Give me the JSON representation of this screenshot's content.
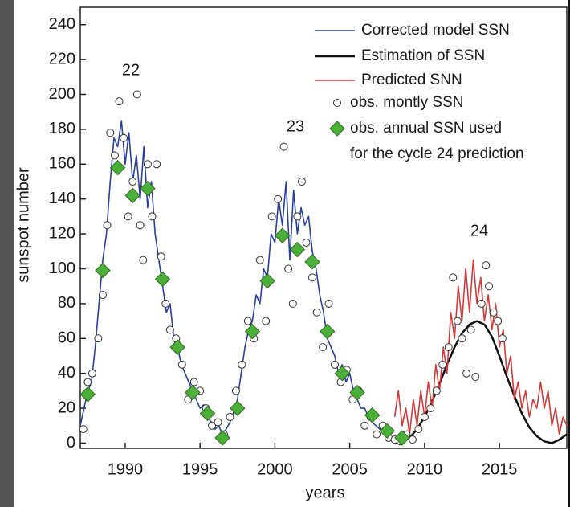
{
  "chart_data": {
    "type": "line",
    "xlabel": "years",
    "ylabel": "sunspot number",
    "xlim": [
      1987,
      2019.5
    ],
    "ylim": [
      -3,
      250
    ],
    "xticks": [
      1990,
      1995,
      2000,
      2005,
      2010,
      2015
    ],
    "yticks": [
      0,
      20,
      40,
      60,
      80,
      100,
      120,
      140,
      160,
      180,
      200,
      220,
      240
    ],
    "grid": false,
    "legend_position": "upper right",
    "legend_note": "for the cycle 24 prediction",
    "annotations": [
      "22",
      "23",
      "24"
    ],
    "series": [
      {
        "name": "Corrected model  SSN",
        "type": "line",
        "color": "#2b3f9e",
        "x": [
          1987.0,
          1987.25,
          1987.5,
          1987.75,
          1988.0,
          1988.25,
          1988.5,
          1988.75,
          1989.0,
          1989.25,
          1989.5,
          1989.75,
          1990.0,
          1990.25,
          1990.5,
          1990.75,
          1991.0,
          1991.25,
          1991.5,
          1991.75,
          1992.0,
          1992.25,
          1992.5,
          1992.75,
          1993.0,
          1993.25,
          1993.5,
          1993.75,
          1994.0,
          1994.25,
          1994.5,
          1994.75,
          1995.0,
          1995.25,
          1995.5,
          1995.75,
          1996.0,
          1996.25,
          1996.5,
          1996.75,
          1997.0,
          1997.25,
          1997.5,
          1997.75,
          1998.0,
          1998.25,
          1998.5,
          1998.75,
          1999.0,
          1999.25,
          1999.5,
          1999.75,
          2000.0,
          2000.25,
          2000.5,
          2000.75,
          2001.0,
          2001.25,
          2001.5,
          2001.75,
          2002.0,
          2002.25,
          2002.5,
          2002.75,
          2003.0,
          2003.25,
          2003.5,
          2003.75,
          2004.0,
          2004.25,
          2004.5,
          2004.75,
          2005.0,
          2005.25,
          2005.5,
          2005.75,
          2006.0,
          2006.25,
          2006.5,
          2006.75,
          2007.0,
          2007.25,
          2007.5,
          2007.75,
          2008.0,
          2008.25
        ],
        "values": [
          10,
          20,
          30,
          35,
          55,
          80,
          105,
          120,
          150,
          175,
          170,
          185,
          160,
          178,
          150,
          165,
          140,
          170,
          135,
          150,
          120,
          105,
          90,
          75,
          80,
          60,
          55,
          45,
          40,
          35,
          30,
          25,
          20,
          22,
          15,
          12,
          8,
          10,
          5,
          8,
          12,
          18,
          25,
          40,
          55,
          65,
          70,
          85,
          80,
          100,
          95,
          120,
          115,
          140,
          125,
          150,
          105,
          145,
          120,
          135,
          125,
          130,
          110,
          100,
          85,
          75,
          60,
          55,
          50,
          40,
          45,
          35,
          40,
          30,
          25,
          20,
          20,
          15,
          12,
          10,
          8,
          7,
          5,
          4,
          3,
          2
        ]
      },
      {
        "name": "Estimation of SSN",
        "type": "line",
        "color": "#111111",
        "x": [
          2008,
          2008.5,
          2009,
          2009.5,
          2010,
          2010.5,
          2011,
          2011.5,
          2012,
          2012.5,
          2013,
          2013.5,
          2014,
          2014.5,
          2015,
          2015.5,
          2016,
          2016.5,
          2017,
          2017.5,
          2018,
          2018.5,
          2019,
          2019.5
        ],
        "values": [
          0,
          1,
          3,
          8,
          15,
          24,
          34,
          45,
          55,
          63,
          68,
          70,
          68,
          61,
          50,
          38,
          27,
          17,
          9,
          4,
          1,
          0,
          2,
          5
        ]
      },
      {
        "name": "Predicted SNN",
        "type": "line",
        "color": "#d43a3a",
        "x": [
          2008.0,
          2008.25,
          2008.5,
          2008.75,
          2009.0,
          2009.25,
          2009.5,
          2009.75,
          2010.0,
          2010.25,
          2010.5,
          2010.75,
          2011.0,
          2011.25,
          2011.5,
          2011.75,
          2012.0,
          2012.25,
          2012.5,
          2012.75,
          2013.0,
          2013.25,
          2013.5,
          2013.75,
          2014.0,
          2014.25,
          2014.5,
          2014.75,
          2015.0,
          2015.25,
          2015.5,
          2015.75,
          2016.0,
          2016.25,
          2016.5,
          2016.75,
          2017.0,
          2017.25,
          2017.5,
          2017.75,
          2018.0,
          2018.25,
          2018.5,
          2018.75,
          2019.0,
          2019.25,
          2019.5
        ],
        "values": [
          15,
          30,
          10,
          20,
          5,
          25,
          10,
          30,
          15,
          35,
          20,
          45,
          30,
          55,
          40,
          75,
          60,
          90,
          70,
          100,
          75,
          105,
          80,
          95,
          70,
          85,
          65,
          80,
          55,
          65,
          40,
          50,
          25,
          35,
          20,
          30,
          15,
          25,
          20,
          35,
          20,
          30,
          10,
          20,
          5,
          15,
          10
        ]
      },
      {
        "name": "obs. montly SSN",
        "type": "scatter",
        "marker": "circle",
        "color": "#ffffff",
        "x": [
          1987.2,
          1987.5,
          1987.8,
          1988.2,
          1988.5,
          1988.8,
          1989.0,
          1989.3,
          1989.6,
          1989.9,
          1990.2,
          1990.5,
          1990.8,
          1991.0,
          1991.2,
          1991.5,
          1991.8,
          1992.1,
          1992.4,
          1992.7,
          1993.0,
          1993.4,
          1993.8,
          1994.2,
          1994.6,
          1995.0,
          1995.4,
          1995.8,
          1996.2,
          1996.6,
          1997.0,
          1997.4,
          1997.8,
          1998.2,
          1998.6,
          1999.0,
          1999.4,
          1999.8,
          2000.2,
          2000.6,
          2000.9,
          2001.2,
          2001.5,
          2001.8,
          2002.1,
          2002.5,
          2002.8,
          2003.2,
          2003.6,
          2004.0,
          2004.4,
          2004.8,
          2005.2,
          2005.6,
          2006.0,
          2006.4,
          2006.8,
          2007.2,
          2007.6,
          2008.0,
          2008.4,
          2008.8,
          2009.2,
          2009.6,
          2010.0,
          2010.4,
          2010.8,
          2011.2,
          2011.6,
          2011.9,
          2012.2,
          2012.5,
          2012.8,
          2013.1,
          2013.4,
          2013.8,
          2014.1,
          2014.3,
          2014.6,
          2014.9,
          2015.2
        ],
        "values": [
          8,
          35,
          40,
          60,
          85,
          125,
          178,
          165,
          196,
          175,
          130,
          150,
          200,
          125,
          105,
          160,
          130,
          160,
          107,
          80,
          65,
          60,
          45,
          25,
          35,
          30,
          20,
          10,
          12,
          5,
          15,
          30,
          45,
          70,
          60,
          105,
          70,
          130,
          140,
          170,
          100,
          80,
          130,
          150,
          115,
          95,
          75,
          55,
          80,
          45,
          35,
          42,
          25,
          30,
          10,
          15,
          5,
          10,
          3,
          2,
          1,
          5,
          2,
          8,
          15,
          20,
          30,
          45,
          55,
          95,
          70,
          60,
          40,
          65,
          38,
          80,
          102,
          90,
          75,
          70,
          60
        ]
      },
      {
        "name": "obs. annual SSN used",
        "type": "scatter",
        "marker": "diamond",
        "color": "#4caf3a",
        "x": [
          1987.5,
          1988.5,
          1989.5,
          1990.5,
          1991.5,
          1992.5,
          1993.5,
          1994.5,
          1995.5,
          1996.5,
          1997.5,
          1998.5,
          1999.5,
          2000.5,
          2001.5,
          2002.5,
          2003.5,
          2004.5,
          2005.5,
          2006.5,
          2007.5,
          2008.5
        ],
        "values": [
          28,
          99,
          158,
          142,
          146,
          94,
          55,
          29,
          17,
          3,
          20,
          64,
          93,
          119,
          111,
          104,
          64,
          40,
          29,
          16,
          7,
          3
        ]
      }
    ]
  }
}
